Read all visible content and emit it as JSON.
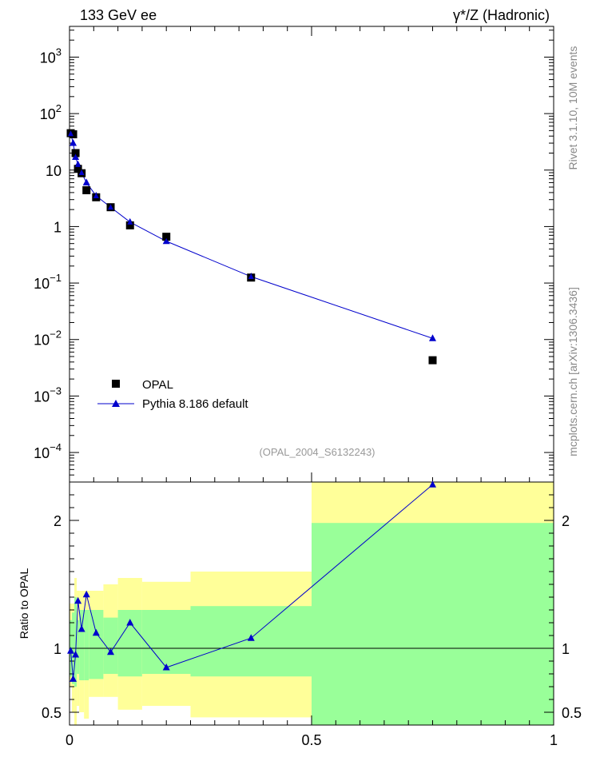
{
  "header": {
    "left_title": "133 GeV ee",
    "right_title": "γ*/Z (Hadronic)"
  },
  "side_labels": {
    "rivet": "Rivet 3.1.10,  10M events",
    "mcplots": "mcplots.cern.ch [arXiv:1306.3436]"
  },
  "watermark": "(OPAL_2004_S6132243)",
  "legend": {
    "data_label": "OPAL",
    "mc_label": "Pythia 8.186 default"
  },
  "colors": {
    "data": "#000000",
    "mc": "#0000cc",
    "band_inner": "#99ff99",
    "band_outer": "#ffff99"
  },
  "ratio_ylabel": "Ratio to OPAL",
  "main_ticks": [
    {
      "value": 0.0001,
      "base": "10",
      "exp": "−4"
    },
    {
      "value": 0.001,
      "base": "10",
      "exp": "−3"
    },
    {
      "value": 0.01,
      "base": "10",
      "exp": "−2"
    },
    {
      "value": 0.1,
      "base": "10",
      "exp": "−1"
    },
    {
      "value": 1,
      "base": "1",
      "exp": ""
    },
    {
      "value": 10,
      "base": "10",
      "exp": ""
    },
    {
      "value": 100,
      "base": "10",
      "exp": "2"
    },
    {
      "value": 1000,
      "base": "10",
      "exp": "3"
    }
  ],
  "ratio_ticks": [
    {
      "value": 0.5,
      "label": "0.5"
    },
    {
      "value": 1,
      "label": "1"
    },
    {
      "value": 2,
      "label": "2"
    }
  ],
  "x_ticks": [
    {
      "value": 0,
      "label": "0"
    },
    {
      "value": 0.5,
      "label": "0.5"
    },
    {
      "value": 1,
      "label": "1"
    }
  ],
  "chart_data": {
    "type": "scatter",
    "x_range": [
      0,
      1
    ],
    "main_yscale": "log",
    "main_ylim": [
      3e-05,
      3500
    ],
    "ratio_ylim": [
      0.4,
      2.3
    ],
    "legend_position": "bottom-left",
    "series": [
      {
        "name": "OPAL",
        "x": [
          0.0025,
          0.0075,
          0.0125,
          0.0175,
          0.025,
          0.035,
          0.055,
          0.085,
          0.125,
          0.2,
          0.375,
          0.75
        ],
        "y": [
          45,
          43,
          20,
          10.5,
          8.8,
          4.4,
          3.3,
          2.2,
          1.05,
          0.66,
          0.125,
          0.0043
        ]
      },
      {
        "name": "Pythia 8.186 default",
        "x": [
          0.0025,
          0.0075,
          0.0125,
          0.0175,
          0.025,
          0.035,
          0.055,
          0.085,
          0.125,
          0.2,
          0.375,
          0.75
        ],
        "y": [
          44,
          30,
          17,
          12.5,
          9.0,
          6.0,
          3.5,
          2.2,
          1.2,
          0.55,
          0.13,
          0.0105
        ]
      }
    ],
    "ratio_points": {
      "x": [
        0.0025,
        0.0075,
        0.0125,
        0.0175,
        0.025,
        0.035,
        0.055,
        0.085,
        0.125,
        0.2,
        0.375,
        0.75
      ],
      "y": [
        0.98,
        0.76,
        0.95,
        1.37,
        1.15,
        1.42,
        1.12,
        0.97,
        1.2,
        0.85,
        1.08,
        2.28
      ]
    },
    "bands": [
      {
        "x0": 0.0,
        "x1": 0.005,
        "inner": [
          0.78,
          1.22
        ],
        "outer": [
          0.7,
          1.35
        ]
      },
      {
        "x0": 0.005,
        "x1": 0.01,
        "inner": [
          0.72,
          1.28
        ],
        "outer": [
          0.5,
          1.35
        ]
      },
      {
        "x0": 0.01,
        "x1": 0.015,
        "inner": [
          0.7,
          1.4
        ],
        "outer": [
          0.4,
          1.55
        ]
      },
      {
        "x0": 0.015,
        "x1": 0.02,
        "inner": [
          0.8,
          1.22
        ],
        "outer": [
          0.55,
          1.45
        ]
      },
      {
        "x0": 0.02,
        "x1": 0.03,
        "inner": [
          0.75,
          1.3
        ],
        "outer": [
          0.5,
          1.45
        ]
      },
      {
        "x0": 0.03,
        "x1": 0.04,
        "inner": [
          0.75,
          1.3
        ],
        "outer": [
          0.45,
          1.45
        ]
      },
      {
        "x0": 0.04,
        "x1": 0.07,
        "inner": [
          0.76,
          1.3
        ],
        "outer": [
          0.62,
          1.45
        ]
      },
      {
        "x0": 0.07,
        "x1": 0.1,
        "inner": [
          0.8,
          1.24
        ],
        "outer": [
          0.62,
          1.5
        ]
      },
      {
        "x0": 0.1,
        "x1": 0.15,
        "inner": [
          0.78,
          1.3
        ],
        "outer": [
          0.52,
          1.55
        ]
      },
      {
        "x0": 0.15,
        "x1": 0.25,
        "inner": [
          0.8,
          1.3
        ],
        "outer": [
          0.55,
          1.52
        ]
      },
      {
        "x0": 0.25,
        "x1": 0.5,
        "inner": [
          0.78,
          1.33
        ],
        "outer": [
          0.46,
          1.6
        ]
      },
      {
        "x0": 0.5,
        "x1": 1.0,
        "inner": [
          0.4,
          1.98
        ],
        "outer": [
          0.4,
          2.3
        ]
      }
    ]
  }
}
